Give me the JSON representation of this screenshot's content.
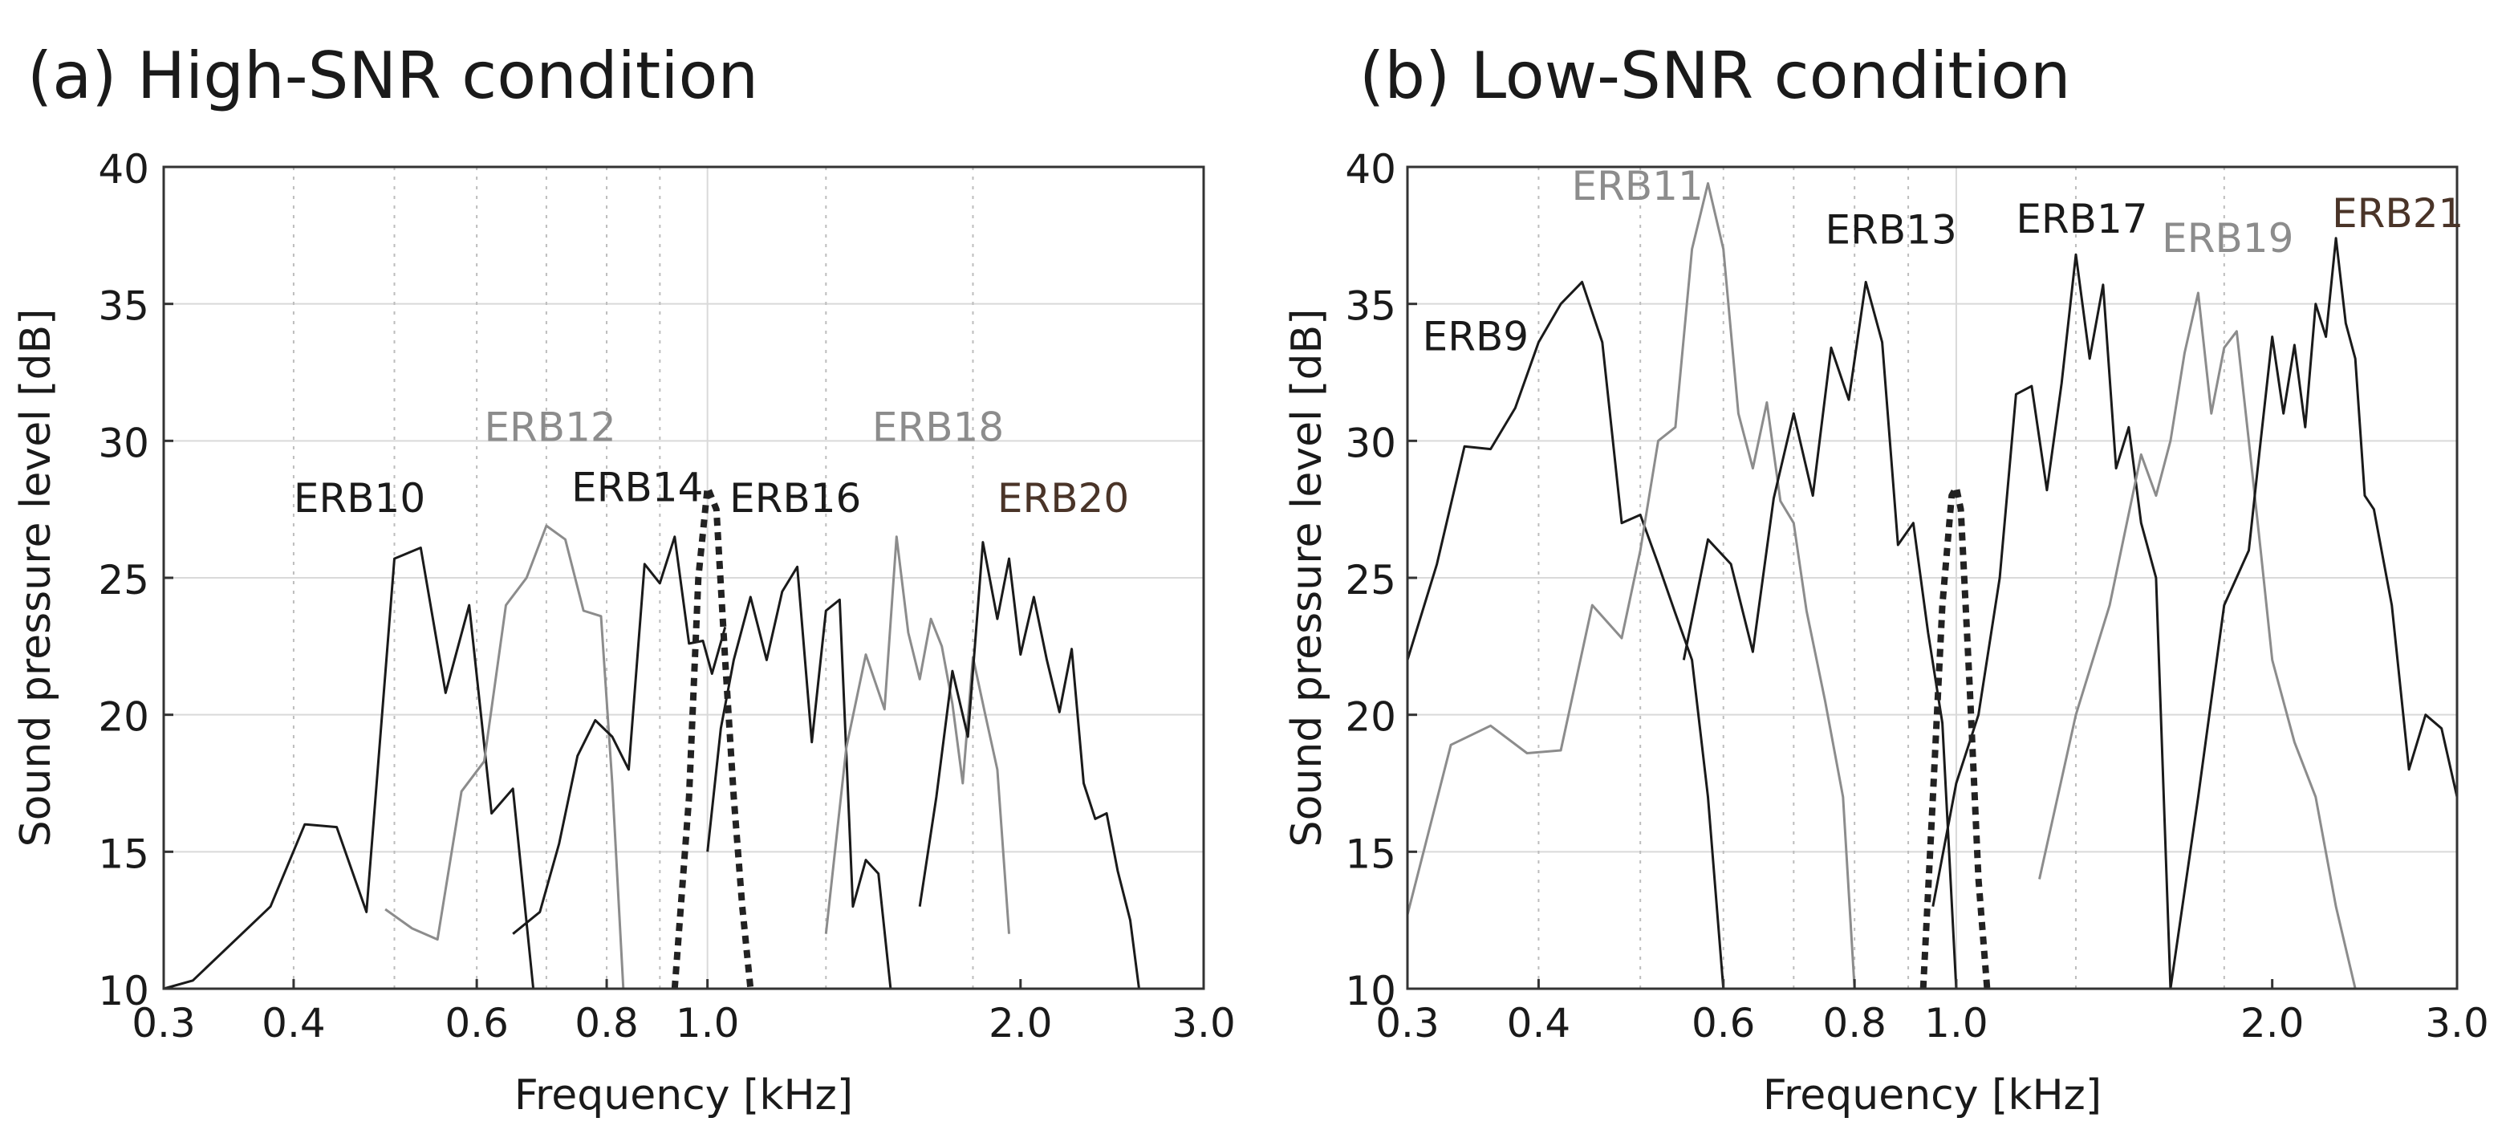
{
  "chart_data": [
    {
      "type": "line",
      "title": "(a) High-SNR condition",
      "xlabel": "Frequency [kHz]",
      "ylabel": "Sound pressure level [dB]",
      "xscale": "log",
      "xlim": [
        0.3,
        3.0
      ],
      "ylim": [
        10,
        40
      ],
      "xticks": [
        0.3,
        0.4,
        0.6,
        0.8,
        1.0,
        2.0,
        3.0
      ],
      "xticklabels": [
        "0.3",
        "0.4",
        "0.6",
        "0.8",
        "1.0",
        "2.0",
        "3.0"
      ],
      "yticks": [
        10,
        15,
        20,
        25,
        30,
        35,
        40
      ],
      "yticklabels": [
        "10",
        "15",
        "20",
        "25",
        "30",
        "35",
        "40"
      ],
      "grid": true,
      "band_edges": [
        0.4,
        0.5,
        0.6,
        0.7,
        0.8,
        0.9,
        1.3,
        1.8
      ],
      "series": [
        {
          "name": "ERB10",
          "color": "#1a1a1a",
          "x": [
            0.3,
            0.32,
            0.38,
            0.41,
            0.44,
            0.47,
            0.5,
            0.53,
            0.56,
            0.59,
            0.62,
            0.65,
            0.68
          ],
          "y": [
            10,
            10.3,
            13,
            16,
            15.9,
            12.8,
            25.7,
            26.1,
            20.8,
            24,
            16.4,
            17.3,
            10
          ]
        },
        {
          "name": "ERB12",
          "color": "#8c8c8c",
          "x": [
            0.49,
            0.52,
            0.55,
            0.58,
            0.61,
            0.64,
            0.67,
            0.7,
            0.73,
            0.76,
            0.79,
            0.81,
            0.83
          ],
          "y": [
            12.9,
            12.2,
            11.8,
            17.2,
            18.3,
            24,
            25,
            26.9,
            26.4,
            23.8,
            23.6,
            17.5,
            10
          ]
        },
        {
          "name": "ERB14",
          "color": "#1a1a1a",
          "x": [
            0.65,
            0.69,
            0.72,
            0.75,
            0.78,
            0.81,
            0.84,
            0.87,
            0.9,
            0.93,
            0.96,
            0.99,
            1.01,
            1.04
          ],
          "y": [
            12,
            12.8,
            15.3,
            18.5,
            19.8,
            19.2,
            18,
            25.5,
            24.8,
            26.5,
            22.6,
            22.7,
            21.5,
            23.2
          ]
        },
        {
          "name": "ERB16",
          "color": "#1a1a1a",
          "x": [
            1.0,
            1.03,
            1.06,
            1.1,
            1.14,
            1.18,
            1.22,
            1.26,
            1.3,
            1.34,
            1.38,
            1.42,
            1.46,
            1.5
          ],
          "y": [
            15,
            19.5,
            22,
            24.3,
            22,
            24.5,
            25.4,
            19,
            23.8,
            24.2,
            13,
            14.7,
            14.2,
            10
          ]
        },
        {
          "name": "ERB18",
          "color": "#8c8c8c",
          "x": [
            1.3,
            1.36,
            1.42,
            1.48,
            1.52,
            1.56,
            1.6,
            1.64,
            1.68,
            1.72,
            1.76,
            1.8,
            1.85,
            1.9,
            1.95
          ],
          "y": [
            12,
            18.8,
            22.2,
            20.2,
            26.5,
            23,
            21.3,
            23.5,
            22.5,
            20.4,
            17.5,
            22.1,
            20,
            18,
            12
          ]
        },
        {
          "name": "ERB20",
          "color": "#1a1a1a",
          "x": [
            1.6,
            1.66,
            1.72,
            1.78,
            1.84,
            1.9,
            1.95,
            2.0,
            2.06,
            2.12,
            2.18,
            2.24,
            2.3,
            2.36,
            2.42,
            2.48,
            2.55,
            2.6
          ],
          "y": [
            13,
            17,
            21.6,
            19.2,
            26.3,
            23.5,
            25.7,
            22.2,
            24.3,
            22,
            20.1,
            22.4,
            17.5,
            16.2,
            16.4,
            14.3,
            12.5,
            10
          ]
        },
        {
          "name": "",
          "color": "#222222",
          "dashed": true,
          "x": [
            0.93,
            0.96,
            0.98,
            1.0,
            1.02,
            1.04,
            1.06,
            1.08,
            1.1
          ],
          "y": [
            10,
            17,
            25,
            28.3,
            27.5,
            22,
            17,
            13,
            10
          ]
        }
      ],
      "labels": [
        {
          "text": "ERB10",
          "x": 0.4,
          "y": 27.4,
          "color": "#1a1a1a"
        },
        {
          "text": "ERB12",
          "x": 0.61,
          "y": 30,
          "color": "#8c8c8c"
        },
        {
          "text": "ERB14",
          "x": 0.74,
          "y": 27.8,
          "color": "#1a1a1a"
        },
        {
          "text": "ERB16",
          "x": 1.05,
          "y": 27.4,
          "color": "#1a1a1a"
        },
        {
          "text": "ERB18",
          "x": 1.44,
          "y": 30,
          "color": "#8c8c8c"
        },
        {
          "text": "ERB20",
          "x": 1.9,
          "y": 27.4,
          "color": "#4a3428"
        }
      ]
    },
    {
      "type": "line",
      "title": "(b) Low-SNR condition",
      "xlabel": "Frequency [kHz]",
      "ylabel": "Sound pressure level [dB]",
      "xscale": "log",
      "xlim": [
        0.3,
        3.0
      ],
      "ylim": [
        10,
        40
      ],
      "xticks": [
        0.3,
        0.4,
        0.6,
        0.8,
        1.0,
        2.0,
        3.0
      ],
      "xticklabels": [
        "0.3",
        "0.4",
        "0.6",
        "0.8",
        "1.0",
        "2.0",
        "3.0"
      ],
      "yticks": [
        10,
        15,
        20,
        25,
        30,
        35,
        40
      ],
      "yticklabels": [
        "10",
        "15",
        "20",
        "25",
        "30",
        "35",
        "40"
      ],
      "grid": true,
      "band_edges": [
        0.4,
        0.5,
        0.6,
        0.7,
        0.8,
        0.9,
        1.3,
        1.8
      ],
      "series": [
        {
          "name": "ERB9",
          "color": "#1a1a1a",
          "x": [
            0.3,
            0.32,
            0.34,
            0.36,
            0.38,
            0.4,
            0.42,
            0.44,
            0.46,
            0.48,
            0.5,
            0.52,
            0.54,
            0.56,
            0.58,
            0.6
          ],
          "y": [
            22,
            25.5,
            29.8,
            29.7,
            31.2,
            33.6,
            35,
            35.8,
            33.6,
            27,
            27.3,
            25.5,
            23.7,
            22,
            17,
            10
          ]
        },
        {
          "name": "ERB11",
          "color": "#8c8c8c",
          "x": [
            0.3,
            0.33,
            0.36,
            0.39,
            0.42,
            0.45,
            0.48,
            0.5,
            0.52,
            0.54,
            0.56,
            0.58,
            0.6,
            0.62,
            0.64,
            0.66,
            0.68,
            0.7,
            0.72,
            0.75,
            0.78,
            0.8
          ],
          "y": [
            12.7,
            18.9,
            19.6,
            18.6,
            18.7,
            24,
            22.8,
            26,
            30,
            30.5,
            37,
            39.4,
            37,
            31,
            29,
            31.4,
            27.8,
            27,
            23.8,
            20.5,
            17,
            10
          ]
        },
        {
          "name": "ERB13",
          "color": "#1a1a1a",
          "x": [
            0.55,
            0.58,
            0.61,
            0.64,
            0.67,
            0.7,
            0.73,
            0.76,
            0.79,
            0.82,
            0.85,
            0.88,
            0.91,
            0.94,
            0.97,
            1.0
          ],
          "y": [
            22,
            26.4,
            25.5,
            22.3,
            27.9,
            31,
            28,
            33.4,
            31.5,
            35.8,
            33.6,
            26.2,
            27,
            23,
            19.7,
            10
          ]
        },
        {
          "name": "ERB17",
          "color": "#1a1a1a",
          "x": [
            0.95,
            1.0,
            1.05,
            1.1,
            1.14,
            1.18,
            1.22,
            1.26,
            1.3,
            1.34,
            1.38,
            1.42,
            1.46,
            1.5,
            1.55,
            1.6
          ],
          "y": [
            13,
            17.5,
            20,
            25,
            31.7,
            32,
            28.2,
            32.1,
            36.8,
            33,
            35.7,
            29,
            30.5,
            27,
            25,
            10
          ]
        },
        {
          "name": "ERB19",
          "color": "#8c8c8c",
          "x": [
            1.2,
            1.3,
            1.4,
            1.5,
            1.55,
            1.6,
            1.65,
            1.7,
            1.75,
            1.8,
            1.85,
            1.9,
            1.95,
            2.0,
            2.1,
            2.2,
            2.3,
            2.4
          ],
          "y": [
            14,
            20,
            24,
            29.5,
            28,
            30,
            33.2,
            35.4,
            31,
            33.4,
            34,
            30,
            26,
            22,
            19,
            17,
            13,
            10
          ]
        },
        {
          "name": "ERB21",
          "color": "#1a1a1a",
          "x": [
            1.6,
            1.7,
            1.8,
            1.9,
            1.95,
            2.0,
            2.05,
            2.1,
            2.15,
            2.2,
            2.25,
            2.3,
            2.35,
            2.4,
            2.45,
            2.5,
            2.6,
            2.7,
            2.8,
            2.9,
            3.0
          ],
          "y": [
            10,
            17,
            24,
            26,
            30,
            33.8,
            31,
            33.5,
            30.5,
            35,
            33.8,
            37.4,
            34.3,
            33,
            28,
            27.5,
            24,
            18,
            20,
            19.5,
            17
          ]
        },
        {
          "name": "",
          "color": "#222222",
          "dashed": true,
          "x": [
            0.93,
            0.95,
            0.97,
            0.99,
            1.0,
            1.01,
            1.03,
            1.05,
            1.07
          ],
          "y": [
            10,
            17,
            24,
            28,
            28.3,
            27.5,
            21,
            14,
            10
          ]
        }
      ],
      "labels": [
        {
          "text": "ERB9",
          "x": 0.31,
          "y": 33.3,
          "color": "#1a1a1a"
        },
        {
          "text": "ERB11",
          "x": 0.43,
          "y": 38.8,
          "color": "#8c8c8c"
        },
        {
          "text": "ERB13",
          "x": 0.75,
          "y": 37.2,
          "color": "#1a1a1a"
        },
        {
          "text": "ERB17",
          "x": 1.14,
          "y": 37.6,
          "color": "#1a1a1a"
        },
        {
          "text": "ERB19",
          "x": 1.57,
          "y": 36.9,
          "color": "#8c8c8c"
        },
        {
          "text": "ERB21",
          "x": 2.28,
          "y": 37.8,
          "color": "#4a3428"
        }
      ]
    }
  ]
}
